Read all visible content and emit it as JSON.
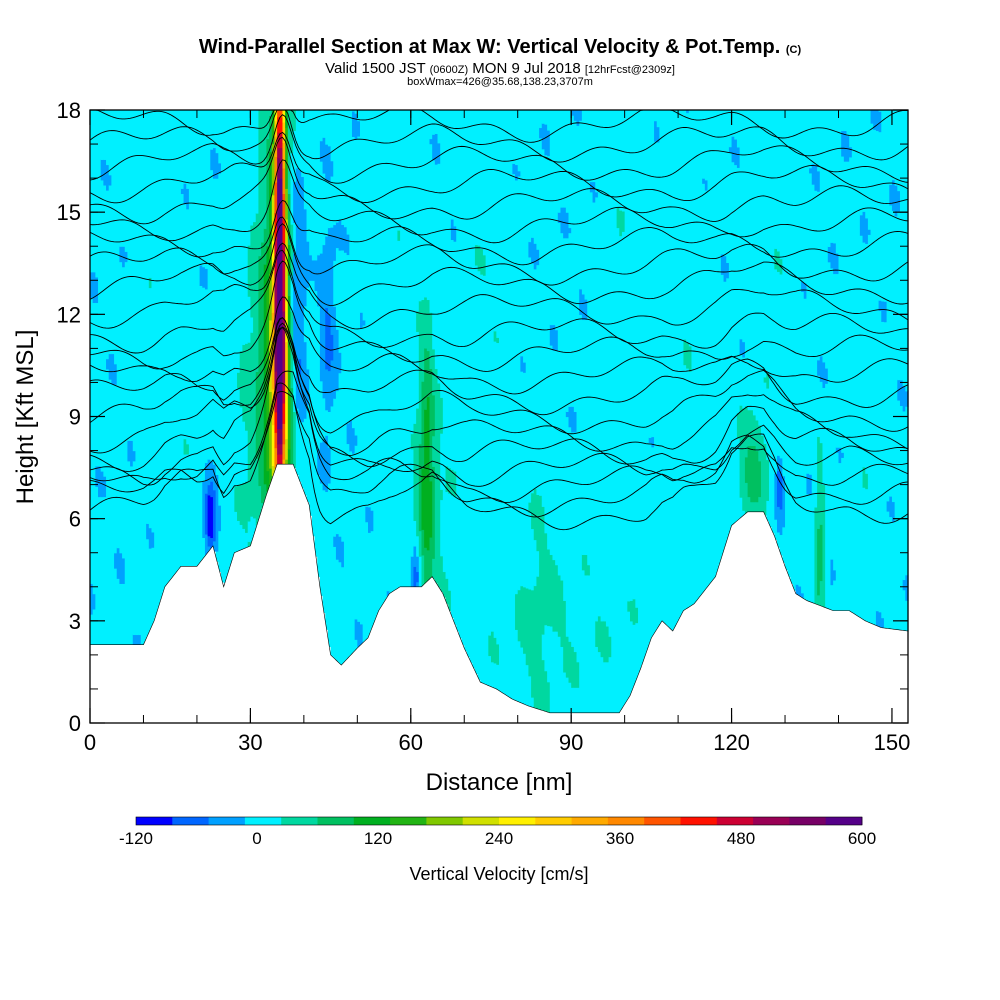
{
  "chart_data": {
    "type": "heatmap",
    "title": "Wind-Parallel Section at Max W: Vertical Velocity & Pot.Temp.",
    "title_mark": "(C)",
    "subtitle_parts": [
      "Valid 1500 JST ",
      "(0600Z)",
      " MON 9 Jul 2018 ",
      "[12hrFcst@2309z]"
    ],
    "subtitle2": "boxWmax=426@35.68,138.23,3707m",
    "xlabel": "Distance [nm]",
    "ylabel": "Height [Kft MSL]",
    "xlim": [
      0,
      153
    ],
    "ylim": [
      0,
      18
    ],
    "xticks": [
      0,
      30,
      60,
      90,
      120,
      150
    ],
    "yticks": [
      0,
      3,
      6,
      9,
      12,
      15,
      18
    ],
    "colorbar": {
      "label": "Vertical Velocity [cm/s]",
      "ticks": [
        -120,
        0,
        120,
        240,
        360,
        480,
        600
      ],
      "min": -120,
      "max": 600,
      "colors": [
        "#0000ff",
        "#0066ff",
        "#00a0ff",
        "#00f0ff",
        "#00d8a0",
        "#00c060",
        "#00b020",
        "#22b414",
        "#80c800",
        "#d0e000",
        "#fff000",
        "#ffcc00",
        "#ffaa00",
        "#ff8800",
        "#ff5500",
        "#ff1100",
        "#cc0033",
        "#990055",
        "#770066",
        "#550088"
      ]
    },
    "terrain_kft": [
      [
        0,
        2.3
      ],
      [
        10,
        2.3
      ],
      [
        12,
        3
      ],
      [
        14,
        4
      ],
      [
        17,
        4.6
      ],
      [
        20,
        4.6
      ],
      [
        23,
        5.2
      ],
      [
        25,
        4.0
      ],
      [
        27,
        5.0
      ],
      [
        30,
        5.2
      ],
      [
        33,
        6.7
      ],
      [
        35,
        7.6
      ],
      [
        38,
        7.6
      ],
      [
        41,
        6.4
      ],
      [
        43,
        4.0
      ],
      [
        45,
        2.0
      ],
      [
        47,
        1.7
      ],
      [
        50,
        2.2
      ],
      [
        52,
        2.5
      ],
      [
        54,
        3.3
      ],
      [
        56,
        3.8
      ],
      [
        58,
        4.0
      ],
      [
        62,
        4.0
      ],
      [
        64,
        4.3
      ],
      [
        66,
        3.8
      ],
      [
        68,
        3.0
      ],
      [
        70,
        2.2
      ],
      [
        73,
        1.2
      ],
      [
        76,
        1.0
      ],
      [
        79,
        0.7
      ],
      [
        82,
        0.5
      ],
      [
        86,
        0.3
      ],
      [
        90,
        0.3
      ],
      [
        95,
        0.3
      ],
      [
        99,
        0.3
      ],
      [
        101,
        0.8
      ],
      [
        103,
        1.6
      ],
      [
        105,
        2.5
      ],
      [
        107,
        3.0
      ],
      [
        109,
        2.7
      ],
      [
        111,
        3.3
      ],
      [
        113,
        3.5
      ],
      [
        117,
        4.3
      ],
      [
        120,
        5.8
      ],
      [
        123,
        6.2
      ],
      [
        126,
        6.2
      ],
      [
        128,
        5.5
      ],
      [
        130,
        4.6
      ],
      [
        132,
        3.8
      ],
      [
        134,
        3.6
      ],
      [
        139,
        3.3
      ],
      [
        142,
        3.3
      ],
      [
        145,
        3.0
      ],
      [
        148,
        2.8
      ],
      [
        153,
        2.7
      ]
    ],
    "background_w": 0,
    "field": [
      {
        "x": 35.5,
        "y": 13.5,
        "sx": 0.7,
        "sy": 5.0,
        "w": 560
      },
      {
        "x": 35.5,
        "y": 10.0,
        "sx": 1.7,
        "sy": 3.0,
        "w": 200
      },
      {
        "x": 35.5,
        "y": 14.0,
        "sx": 2.6,
        "sy": 6.0,
        "w": 70
      },
      {
        "x": 32.0,
        "y": 9.0,
        "sx": 3.5,
        "sy": 4.0,
        "w": 40
      },
      {
        "x": 38.5,
        "y": 12.0,
        "sx": 1.2,
        "sy": 3.0,
        "w": -110
      },
      {
        "x": 44.5,
        "y": 11.5,
        "sx": 1.0,
        "sy": 2.0,
        "w": -50
      },
      {
        "x": 22.5,
        "y": 6.0,
        "sx": 0.8,
        "sy": 0.7,
        "w": -130
      },
      {
        "x": 63.0,
        "y": 7.5,
        "sx": 1.0,
        "sy": 3.0,
        "w": 100
      },
      {
        "x": 64.0,
        "y": 6.5,
        "sx": 3.0,
        "sy": 2.5,
        "w": 30
      },
      {
        "x": 61.0,
        "y": 4.3,
        "sx": 0.6,
        "sy": 0.6,
        "w": -70
      },
      {
        "x": 124.0,
        "y": 7.5,
        "sx": 2.0,
        "sy": 1.2,
        "w": 70
      },
      {
        "x": 136.5,
        "y": 5.0,
        "sx": 0.7,
        "sy": 1.8,
        "w": 75
      },
      {
        "x": 129.0,
        "y": 7.0,
        "sx": 0.5,
        "sy": 0.6,
        "w": -80
      },
      {
        "x": 88.0,
        "y": 2.8,
        "sx": 14.0,
        "sy": 2.0,
        "w": 20
      },
      {
        "x": 84.0,
        "y": 4.0,
        "sx": 2.5,
        "sy": 3.5,
        "w": 18
      },
      {
        "x": 74.0,
        "y": 13.0,
        "sx": 3.0,
        "sy": 5.0,
        "w": 15
      },
      {
        "x": 100.0,
        "y": 14.0,
        "sx": 3.0,
        "sy": 5.0,
        "w": 14
      },
      {
        "x": 112.0,
        "y": 10.0,
        "sx": 3.0,
        "sy": 4.0,
        "w": 14
      },
      {
        "x": 128.0,
        "y": 14.0,
        "sx": 3.0,
        "sy": 5.0,
        "w": 13
      },
      {
        "x": 56.0,
        "y": 14.0,
        "sx": 3.0,
        "sy": 4.0,
        "w": 13
      },
      {
        "x": 145.0,
        "y": 8.0,
        "sx": 2.5,
        "sy": 2.5,
        "w": 13
      },
      {
        "x": 12.0,
        "y": 14.0,
        "sx": 3.0,
        "sy": 4.0,
        "w": 12
      },
      {
        "x": 18.0,
        "y": 8.0,
        "sx": 3.0,
        "sy": 2.5,
        "w": 11
      }
    ],
    "theta_levels_kft": [
      6.2,
      6.6,
      7.0,
      7.4,
      7.9,
      8.4,
      9.0,
      9.6,
      10.2,
      10.8,
      11.4,
      12.1,
      12.8,
      13.4,
      14.0,
      14.6,
      15.2,
      15.8,
      16.4,
      17.0,
      17.6
    ]
  }
}
